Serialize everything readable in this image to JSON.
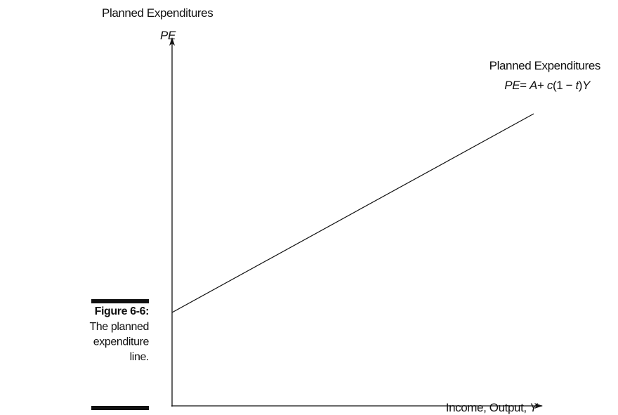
{
  "figure": {
    "y_axis": {
      "label": "Planned Expenditures",
      "symbol": "PE"
    },
    "x_axis": {
      "label": "Income, Output, ",
      "symbol": "Y"
    },
    "line_label": "Planned Expenditures",
    "equation_parts": [
      {
        "text": "PE",
        "italic": true
      },
      {
        "text": "= ",
        "italic": false
      },
      {
        "text": "A",
        "italic": true
      },
      {
        "text": "+ ",
        "italic": false
      },
      {
        "text": "c",
        "italic": true
      },
      {
        "text": "(1 − ",
        "italic": false
      },
      {
        "text": "t",
        "italic": true
      },
      {
        "text": ")",
        "italic": false
      },
      {
        "text": "Y",
        "italic": true
      }
    ],
    "caption": {
      "number": "Figure 6-6:",
      "lines": [
        "The planned",
        "expenditure",
        "line."
      ]
    }
  }
}
